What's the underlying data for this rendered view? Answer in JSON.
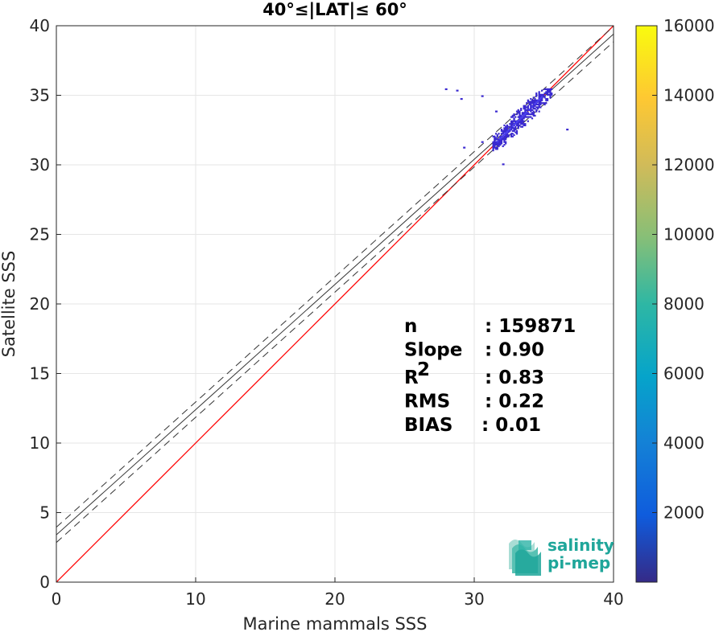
{
  "chart_data": {
    "type": "heatmap",
    "title": "40°≤|LAT|≤ 60°",
    "xlabel": "Marine mammals SSS",
    "ylabel": "Satellite SSS",
    "xlim": [
      0,
      40
    ],
    "ylim": [
      0,
      40
    ],
    "xticks": [
      "0",
      "10",
      "20",
      "30",
      "40"
    ],
    "yticks": [
      "0",
      "5",
      "10",
      "15",
      "20",
      "25",
      "30",
      "35",
      "40"
    ],
    "grid": true,
    "colorbar": {
      "range": [
        0,
        16000
      ],
      "ticks": [
        "2000",
        "4000",
        "6000",
        "8000",
        "10000",
        "12000",
        "14000",
        "16000"
      ],
      "colormap": "parula"
    },
    "reference_line": {
      "slope": 1.0,
      "intercept": 0,
      "color": "#ff0000"
    },
    "fit_line": {
      "slope": 0.9,
      "intercept": 3.4,
      "color": "#333333",
      "band": 0.55
    },
    "density_cluster": {
      "main_x": [
        31.3,
        35.6
      ],
      "main_y": [
        31.0,
        35.5
      ],
      "outliers": [
        {
          "x": 27.9,
          "y": 35.5
        },
        {
          "x": 28.7,
          "y": 35.4
        },
        {
          "x": 29.0,
          "y": 34.8
        },
        {
          "x": 30.5,
          "y": 35.0
        },
        {
          "x": 31.5,
          "y": 33.9
        },
        {
          "x": 32.0,
          "y": 30.1
        },
        {
          "x": 36.6,
          "y": 32.6
        },
        {
          "x": 29.2,
          "y": 31.3
        },
        {
          "x": 30.5,
          "y": 31.7
        }
      ]
    },
    "stats": [
      {
        "label": "n",
        "sup": "",
        "value": ": 159871"
      },
      {
        "label": "Slope",
        "sup": "",
        "value": ": 0.90"
      },
      {
        "label": "R",
        "sup": "2",
        "value": ": 0.83"
      },
      {
        "label": "RMS",
        "sup": "",
        "value": ": 0.22"
      },
      {
        "label": "BIAS",
        "sup": "",
        "value": ": 0.01"
      }
    ]
  },
  "logo": {
    "line1": "salinity",
    "line2": "pi-mep"
  }
}
